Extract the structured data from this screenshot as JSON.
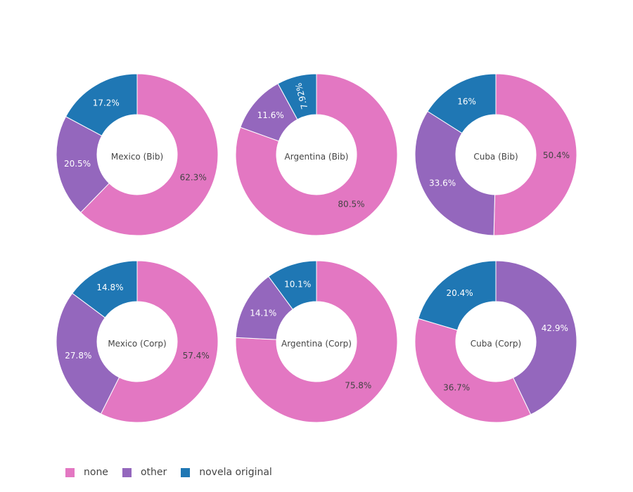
{
  "chart_data": {
    "type": "pie",
    "hole": true,
    "legend_position": "bottom-left",
    "legend": [
      {
        "name": "none",
        "color": "#e377c2"
      },
      {
        "name": "other",
        "color": "#9467bd"
      },
      {
        "name": "novela original",
        "color": "#1f77b4"
      }
    ],
    "charts": [
      {
        "center_label": "Mexico (Bib)",
        "slices": [
          {
            "category": "none",
            "value": 62.3,
            "label": "62.3%",
            "color": "#e377c2"
          },
          {
            "category": "other",
            "value": 20.5,
            "label": "20.5%",
            "color": "#9467bd"
          },
          {
            "category": "novela original",
            "value": 17.2,
            "label": "17.2%",
            "color": "#1f77b4"
          }
        ]
      },
      {
        "center_label": "Argentina (Bib)",
        "slices": [
          {
            "category": "none",
            "value": 80.5,
            "label": "80.5%",
            "color": "#e377c2"
          },
          {
            "category": "other",
            "value": 11.6,
            "label": "11.6%",
            "color": "#9467bd"
          },
          {
            "category": "novela original",
            "value": 7.92,
            "label": "7.92%",
            "color": "#1f77b4"
          }
        ]
      },
      {
        "center_label": "Cuba (Bib)",
        "slices": [
          {
            "category": "none",
            "value": 50.4,
            "label": "50.4%",
            "color": "#e377c2"
          },
          {
            "category": "other",
            "value": 33.6,
            "label": "33.6%",
            "color": "#9467bd"
          },
          {
            "category": "novela original",
            "value": 16,
            "label": "16%",
            "color": "#1f77b4"
          }
        ]
      },
      {
        "center_label": "Mexico (Corp)",
        "slices": [
          {
            "category": "none",
            "value": 57.4,
            "label": "57.4%",
            "color": "#e377c2"
          },
          {
            "category": "other",
            "value": 27.8,
            "label": "27.8%",
            "color": "#9467bd"
          },
          {
            "category": "novela original",
            "value": 14.8,
            "label": "14.8%",
            "color": "#1f77b4"
          }
        ]
      },
      {
        "center_label": "Argentina (Corp)",
        "slices": [
          {
            "category": "none",
            "value": 75.8,
            "label": "75.8%",
            "color": "#e377c2"
          },
          {
            "category": "other",
            "value": 14.1,
            "label": "14.1%",
            "color": "#9467bd"
          },
          {
            "category": "novela original",
            "value": 10.1,
            "label": "10.1%",
            "color": "#1f77b4"
          }
        ]
      },
      {
        "center_label": "Cuba (Corp)",
        "slices": [
          {
            "category": "other",
            "value": 42.9,
            "label": "42.9%",
            "color": "#9467bd"
          },
          {
            "category": "none",
            "value": 36.7,
            "label": "36.7%",
            "color": "#e377c2"
          },
          {
            "category": "novela original",
            "value": 20.4,
            "label": "20.4%",
            "color": "#1f77b4"
          }
        ]
      }
    ]
  }
}
